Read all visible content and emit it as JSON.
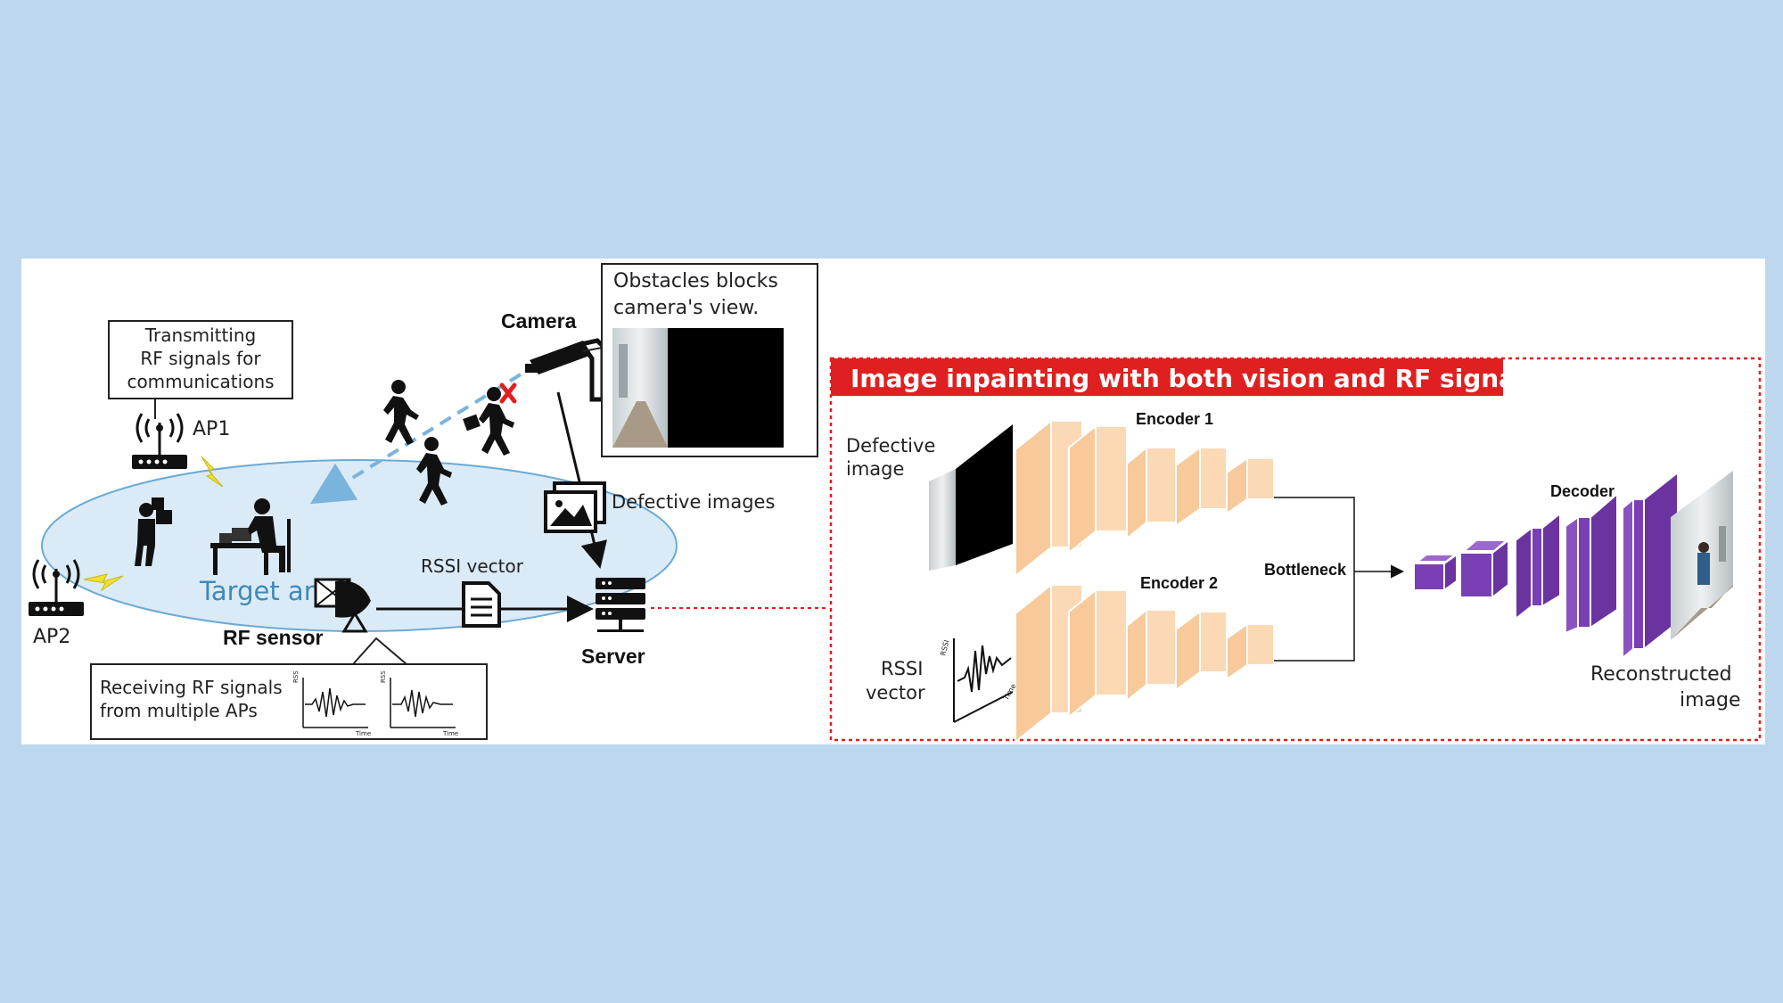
{
  "left": {
    "ap1_callout": [
      "Transmitting",
      "RF signals for",
      "communications"
    ],
    "ap1_label": "AP1",
    "ap2_label": "AP2",
    "target_area_label": "Target area",
    "rf_sensor_label": "RF sensor",
    "camera_label": "Camera",
    "camera_callout": [
      "Obstacles blocks",
      "camera's view."
    ],
    "defective_images_label": "Defective images",
    "rssi_vector_label": "RSSI vector",
    "server_label": "Server",
    "rf_callout": [
      "Receiving RF signals",
      "from multiple APs"
    ],
    "mini_plot_ylabel": "RSS",
    "mini_plot_xlabel": "Time"
  },
  "right": {
    "title": "Image inpainting with both vision and RF signals",
    "defective_image_label": [
      "Defective",
      "image"
    ],
    "encoder1_label": "Encoder 1",
    "encoder2_label": "Encoder 2",
    "bottleneck_label": "Bottleneck",
    "decoder_label": "Decoder",
    "rssi_label": [
      "RSSI",
      "vector"
    ],
    "reconstructed_label": [
      "Reconstructed",
      "image"
    ],
    "plot_ylabel": "RSSI",
    "plot_xlabel": "Time"
  },
  "colors": {
    "background": "#bdd7ee",
    "title_bar": "#e02020",
    "encoder": "#f8c99a",
    "decoder": "#7b3fb5",
    "target_area": "#dbeaf7",
    "dashed_link": "#79b4dc",
    "lightning": "#f2e030"
  }
}
